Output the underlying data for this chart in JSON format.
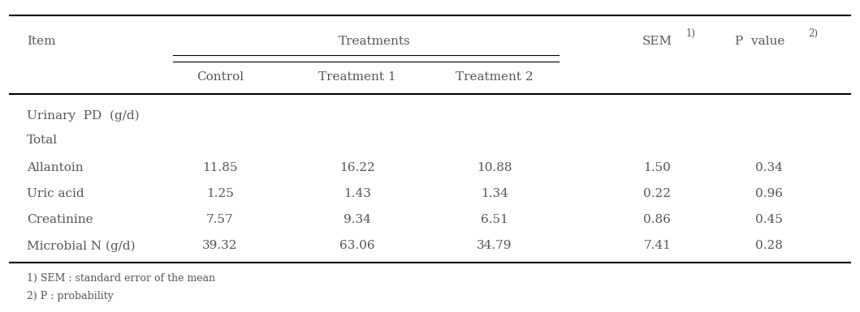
{
  "rows": [
    {
      "label": "Allantoin",
      "control": "11.85",
      "t1": "16.22",
      "t2": "10.88",
      "sem": "1.50",
      "p": "0.34"
    },
    {
      "label": "Uric acid",
      "control": "1.25",
      "t1": "1.43",
      "t2": "1.34",
      "sem": "0.22",
      "p": "0.96"
    },
    {
      "label": "Creatinine",
      "control": "7.57",
      "t1": "9.34",
      "t2": "6.51",
      "sem": "0.86",
      "p": "0.45"
    },
    {
      "label": "Microbial N (g/d)",
      "control": "39.32",
      "t1": "63.06",
      "t2": "34.79",
      "sem": "7.41",
      "p": "0.28"
    }
  ],
  "footnotes": [
    "1) SEM : standard error of the mean",
    "2) P : probability"
  ],
  "figsize": [
    10.59,
    3.85
  ],
  "dpi": 100,
  "font_size": 11,
  "small_font_size": 8.5,
  "text_color": "#555555"
}
